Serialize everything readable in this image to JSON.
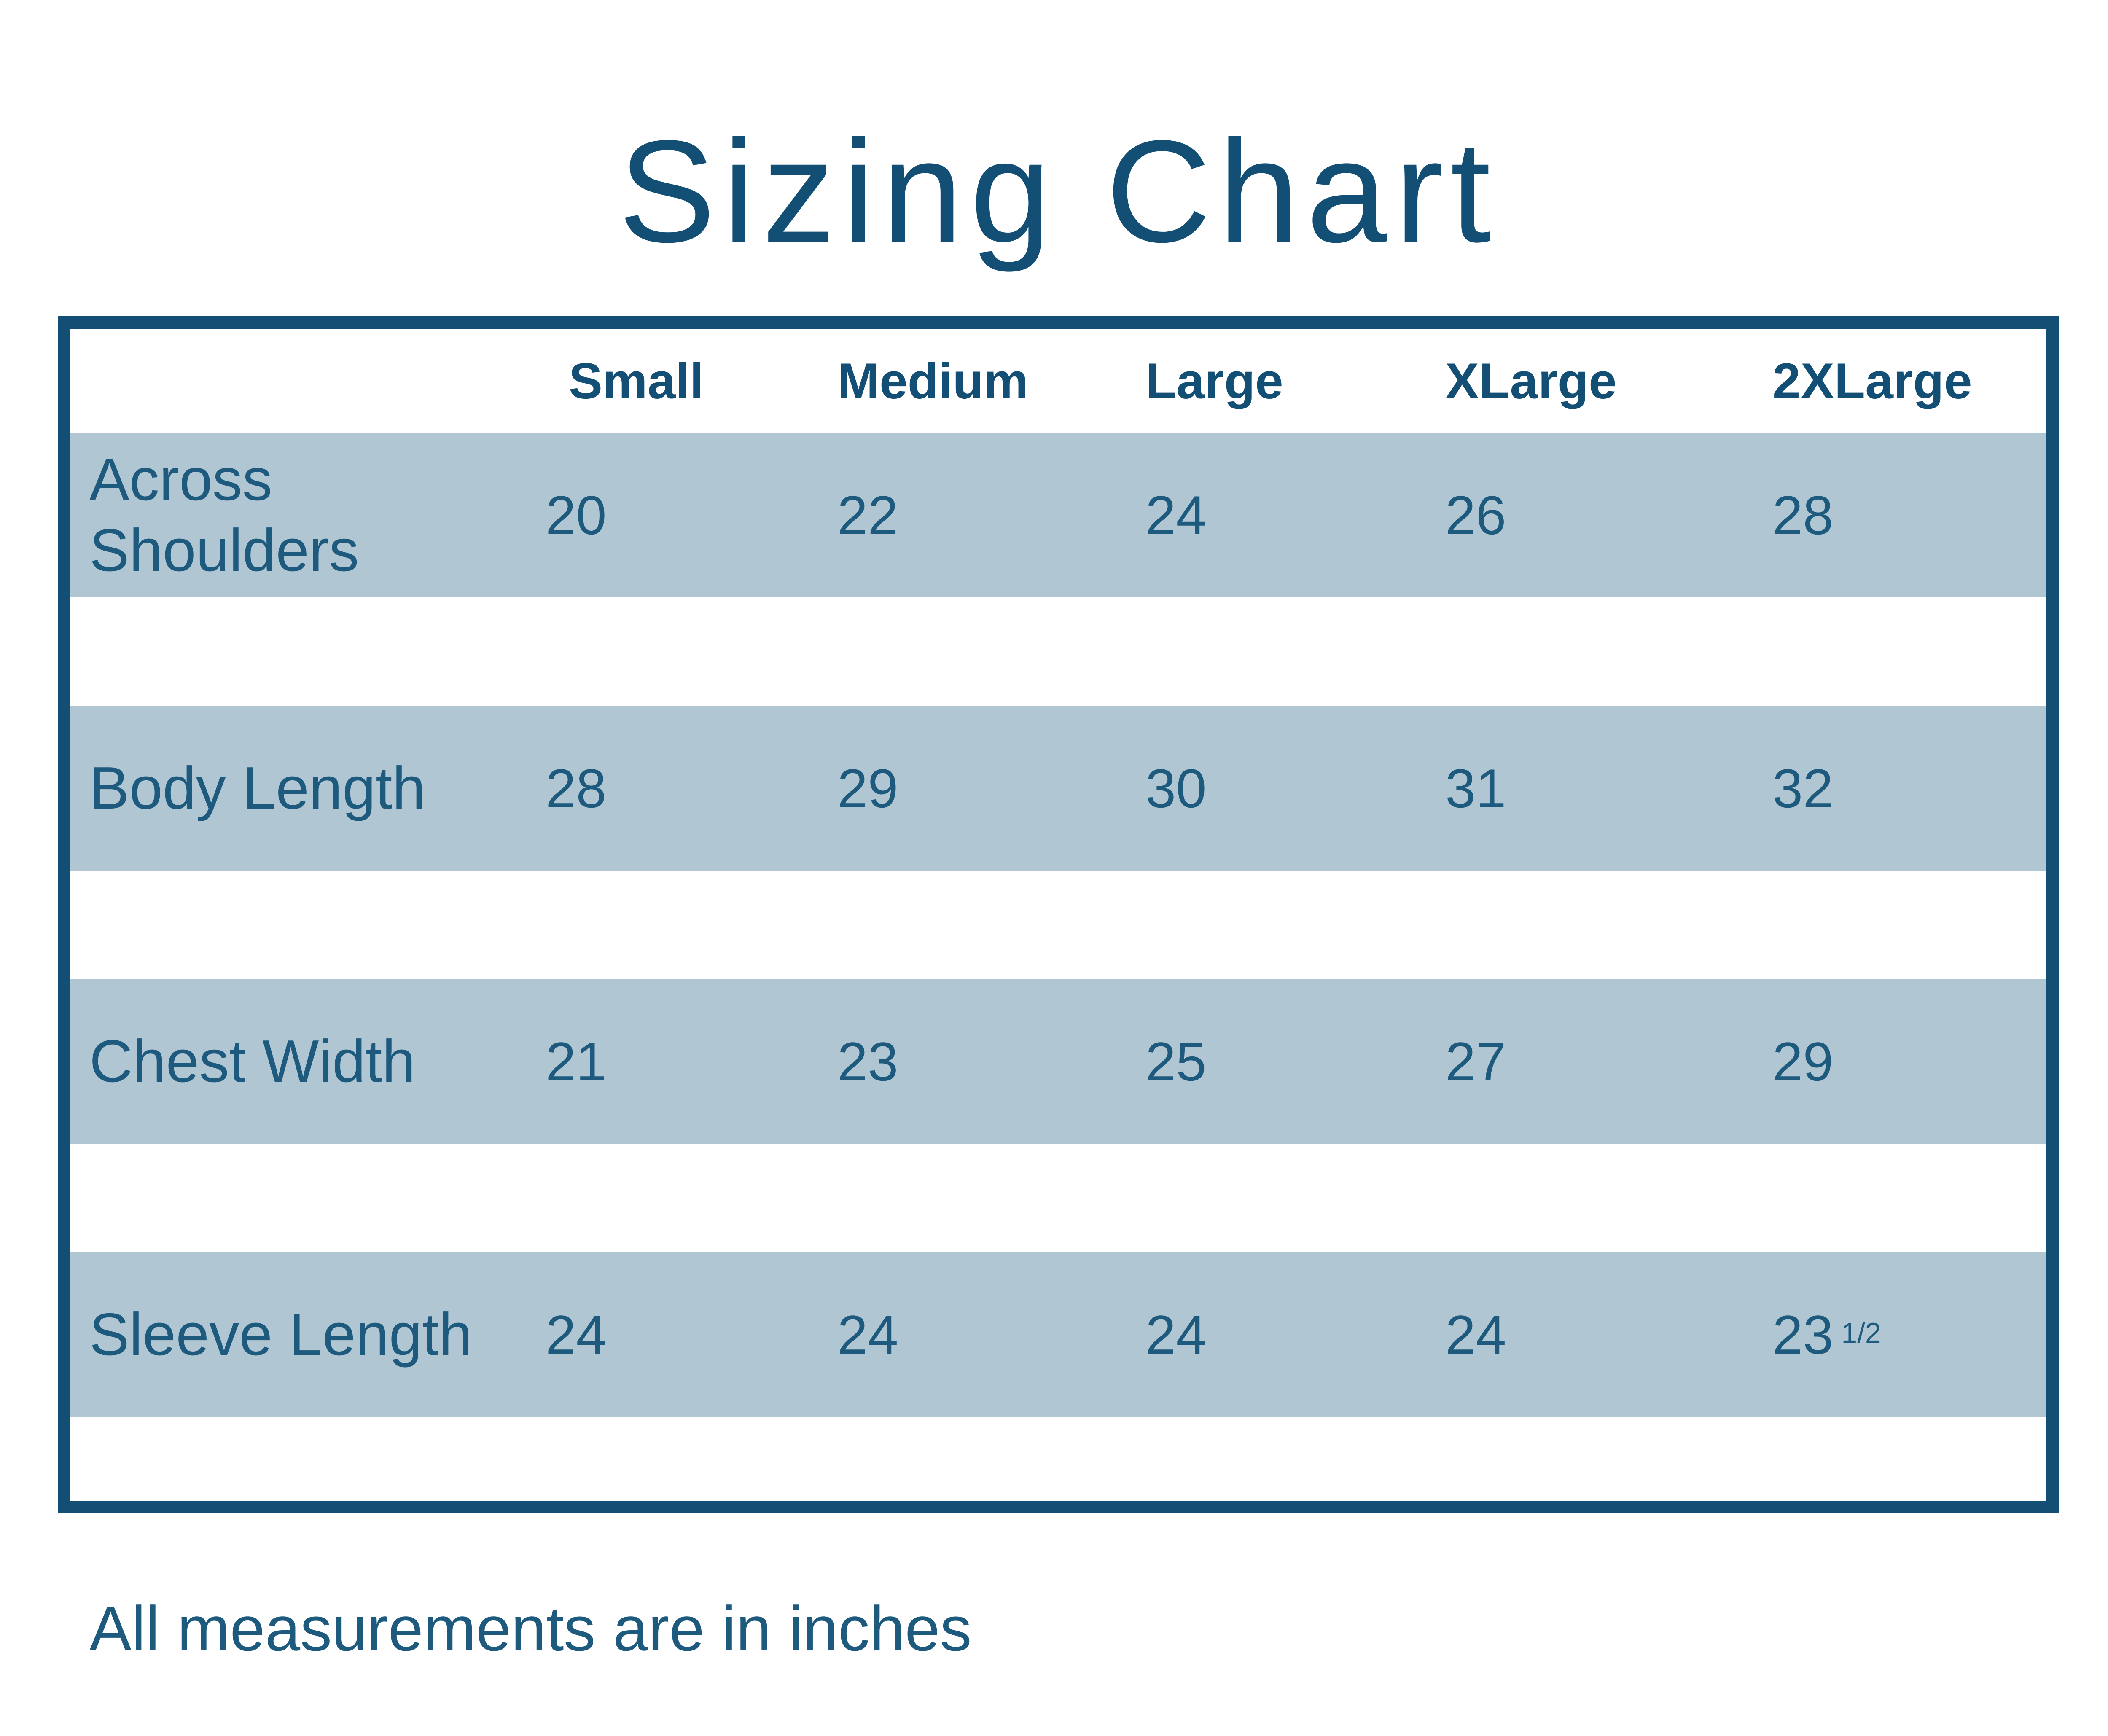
{
  "title": "Sizing Chart",
  "footer_note": "All measurements are in inches",
  "colors": {
    "accent": "#134e74",
    "body_text": "#1d5a7e",
    "row_band": "#b0c7d3",
    "background": "#ffffff"
  },
  "table": {
    "columns": [
      "Small",
      "Medium",
      "Large",
      "XLarge",
      "2XLarge"
    ],
    "rows": [
      {
        "label": "Across Shoulders",
        "values": [
          "20",
          "22",
          "24",
          "26",
          "28"
        ]
      },
      {
        "label": "Body Length",
        "values": [
          "28",
          "29",
          "30",
          "31",
          "32"
        ]
      },
      {
        "label": "Chest Width",
        "values": [
          "21",
          "23",
          "25",
          "27",
          "29"
        ]
      },
      {
        "label": "Sleeve Length",
        "values": [
          "24",
          "24",
          "24",
          "24",
          "23"
        ],
        "fraction": "1/2"
      }
    ]
  },
  "chart_data": {
    "type": "table",
    "title": "Sizing Chart",
    "columns": [
      "Small",
      "Medium",
      "Large",
      "XLarge",
      "2XLarge"
    ],
    "rows": [
      {
        "label": "Across Shoulders",
        "values": [
          20,
          22,
          24,
          26,
          28
        ]
      },
      {
        "label": "Body Length",
        "values": [
          28,
          29,
          30,
          31,
          32
        ]
      },
      {
        "label": "Chest Width",
        "values": [
          21,
          23,
          25,
          27,
          29
        ]
      },
      {
        "label": "Sleeve Length",
        "values": [
          24,
          24,
          24,
          24,
          23.5
        ]
      }
    ],
    "note": "All measurements are in inches",
    "layout": "banded rows (light blue) separated by white gaps, thick dark blue outer frame, no vertical gridlines"
  }
}
